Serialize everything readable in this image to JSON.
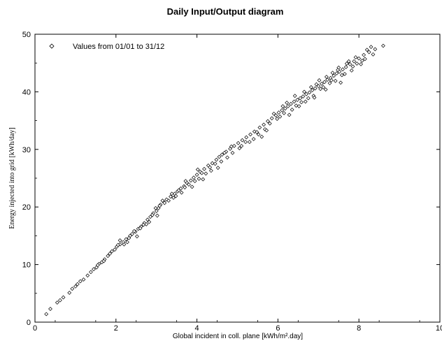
{
  "chart_data": {
    "type": "scatter",
    "title": "Daily Input/Output diagram",
    "xlabel": "Global incident in coll. plane [kWh/m².day]",
    "ylabel": "Energy injected into grid [kWh/day]",
    "xlim": [
      0,
      10
    ],
    "ylim": [
      0,
      50
    ],
    "x_ticks": [
      "0",
      "2",
      "4",
      "6",
      "8",
      "10"
    ],
    "y_ticks": [
      "0",
      "10",
      "20",
      "30",
      "40",
      "50"
    ],
    "grid": false,
    "legend_position": "top-left",
    "series": [
      {
        "name": "Values from 01/01 to 31/12",
        "marker": "open-diamond",
        "color": "#000000",
        "points": [
          [
            0.28,
            1.4
          ],
          [
            0.38,
            2.3
          ],
          [
            0.55,
            3.4
          ],
          [
            0.62,
            3.8
          ],
          [
            0.7,
            4.3
          ],
          [
            0.85,
            5.1
          ],
          [
            0.92,
            5.8
          ],
          [
            1.0,
            6.2
          ],
          [
            1.05,
            6.6
          ],
          [
            1.12,
            7.1
          ],
          [
            1.2,
            7.4
          ],
          [
            1.3,
            8.1
          ],
          [
            1.38,
            8.7
          ],
          [
            1.45,
            9.2
          ],
          [
            1.52,
            9.5
          ],
          [
            1.58,
            10.1
          ],
          [
            1.65,
            10.4
          ],
          [
            1.72,
            10.9
          ],
          [
            1.8,
            11.5
          ],
          [
            1.85,
            11.9
          ],
          [
            1.9,
            12.3
          ],
          [
            1.97,
            12.6
          ],
          [
            2.02,
            13.1
          ],
          [
            2.1,
            13.5
          ],
          [
            2.18,
            13.9
          ],
          [
            2.25,
            14.4
          ],
          [
            2.32,
            14.6
          ],
          [
            2.4,
            15.3
          ],
          [
            2.48,
            15.7
          ],
          [
            2.55,
            16.2
          ],
          [
            2.62,
            16.6
          ],
          [
            2.7,
            17.2
          ],
          [
            2.78,
            17.8
          ],
          [
            2.85,
            18.3
          ],
          [
            2.92,
            18.9
          ],
          [
            3.0,
            19.3
          ],
          [
            3.05,
            19.8
          ],
          [
            3.1,
            20.4
          ],
          [
            3.18,
            20.9
          ],
          [
            3.25,
            21.3
          ],
          [
            3.35,
            21.8
          ],
          [
            3.45,
            22.3
          ],
          [
            3.52,
            22.7
          ],
          [
            3.6,
            23.2
          ],
          [
            3.68,
            23.6
          ],
          [
            3.75,
            24.2
          ],
          [
            3.85,
            24.6
          ],
          [
            3.92,
            25.1
          ],
          [
            4.0,
            25.6
          ],
          [
            4.08,
            26.1
          ],
          [
            4.18,
            26.6
          ],
          [
            4.28,
            27.2
          ],
          [
            4.38,
            27.6
          ],
          [
            4.48,
            28.2
          ],
          [
            4.55,
            28.7
          ],
          [
            4.62,
            29.1
          ],
          [
            4.72,
            29.6
          ],
          [
            4.82,
            30.1
          ],
          [
            4.92,
            30.6
          ],
          [
            5.02,
            31.1
          ],
          [
            5.12,
            31.6
          ],
          [
            5.22,
            32.1
          ],
          [
            5.32,
            32.6
          ],
          [
            5.42,
            33.1
          ],
          [
            5.55,
            33.8
          ],
          [
            5.65,
            34.3
          ],
          [
            5.75,
            34.9
          ],
          [
            5.85,
            35.4
          ],
          [
            5.95,
            35.9
          ],
          [
            6.02,
            36.4
          ],
          [
            6.1,
            36.8
          ],
          [
            6.18,
            37.1
          ],
          [
            6.25,
            37.5
          ],
          [
            6.32,
            37.9
          ],
          [
            6.4,
            38.3
          ],
          [
            6.48,
            38.6
          ],
          [
            6.55,
            38.9
          ],
          [
            6.62,
            39.2
          ],
          [
            6.7,
            39.6
          ],
          [
            6.78,
            39.9
          ],
          [
            6.85,
            40.3
          ],
          [
            6.92,
            40.6
          ],
          [
            7.0,
            41.0
          ],
          [
            7.08,
            41.4
          ],
          [
            7.15,
            41.7
          ],
          [
            7.22,
            42.1
          ],
          [
            7.3,
            42.4
          ],
          [
            7.38,
            42.8
          ],
          [
            7.45,
            43.2
          ],
          [
            7.52,
            43.5
          ],
          [
            7.6,
            43.9
          ],
          [
            7.68,
            44.3
          ],
          [
            7.78,
            44.8
          ],
          [
            7.88,
            45.3
          ],
          [
            8.0,
            45.8
          ],
          [
            8.12,
            46.4
          ],
          [
            8.25,
            46.9
          ],
          [
            8.4,
            47.4
          ],
          [
            8.6,
            48.0
          ],
          [
            1.55,
            9.9
          ],
          [
            1.7,
            10.6
          ],
          [
            2.05,
            13.4
          ],
          [
            2.2,
            13.5
          ],
          [
            2.35,
            15.0
          ],
          [
            2.45,
            15.8
          ],
          [
            2.6,
            16.3
          ],
          [
            2.75,
            17.0
          ],
          [
            2.9,
            18.6
          ],
          [
            2.98,
            19.8
          ],
          [
            3.08,
            20.2
          ],
          [
            3.15,
            21.1
          ],
          [
            3.3,
            21.1
          ],
          [
            3.42,
            21.6
          ],
          [
            3.55,
            22.9
          ],
          [
            3.7,
            23.4
          ],
          [
            3.8,
            23.9
          ],
          [
            3.95,
            24.5
          ],
          [
            4.05,
            24.9
          ],
          [
            4.12,
            25.9
          ],
          [
            4.22,
            25.8
          ],
          [
            4.35,
            26.3
          ],
          [
            4.45,
            27.5
          ],
          [
            4.6,
            27.9
          ],
          [
            4.75,
            28.6
          ],
          [
            4.88,
            29.4
          ],
          [
            5.05,
            30.2
          ],
          [
            5.2,
            31.3
          ],
          [
            5.4,
            31.8
          ],
          [
            5.52,
            32.6
          ],
          [
            5.68,
            33.5
          ],
          [
            5.8,
            34.5
          ],
          [
            5.9,
            36.2
          ],
          [
            6.05,
            35.7
          ],
          [
            6.15,
            36.3
          ],
          [
            6.22,
            38.1
          ],
          [
            6.35,
            36.9
          ],
          [
            6.45,
            37.6
          ],
          [
            6.58,
            38.2
          ],
          [
            6.65,
            40.0
          ],
          [
            6.75,
            38.9
          ],
          [
            6.88,
            39.3
          ],
          [
            6.95,
            41.3
          ],
          [
            7.05,
            40.5
          ],
          [
            7.12,
            40.8
          ],
          [
            7.2,
            42.6
          ],
          [
            7.28,
            41.5
          ],
          [
            7.35,
            43.3
          ],
          [
            7.42,
            41.9
          ],
          [
            7.5,
            44.2
          ],
          [
            7.58,
            42.9
          ],
          [
            7.65,
            43.1
          ],
          [
            7.75,
            45.3
          ],
          [
            7.85,
            44.4
          ],
          [
            7.95,
            44.9
          ],
          [
            8.08,
            45.4
          ],
          [
            8.2,
            47.3
          ],
          [
            8.35,
            46.5
          ],
          [
            2.1,
            14.2
          ],
          [
            2.28,
            13.9
          ],
          [
            2.52,
            14.9
          ],
          [
            2.68,
            16.9
          ],
          [
            2.82,
            17.4
          ],
          [
            3.02,
            18.5
          ],
          [
            3.2,
            20.7
          ],
          [
            3.38,
            22.3
          ],
          [
            3.48,
            21.9
          ],
          [
            3.62,
            22.5
          ],
          [
            3.72,
            24.5
          ],
          [
            3.88,
            23.5
          ],
          [
            4.02,
            26.5
          ],
          [
            4.15,
            24.8
          ],
          [
            4.32,
            26.9
          ],
          [
            4.52,
            26.8
          ],
          [
            4.68,
            29.4
          ],
          [
            4.85,
            30.5
          ],
          [
            5.1,
            30.6
          ],
          [
            5.3,
            31.3
          ],
          [
            5.48,
            33.0
          ],
          [
            5.6,
            32.2
          ],
          [
            5.72,
            33.3
          ],
          [
            5.98,
            35.3
          ],
          [
            6.12,
            37.5
          ],
          [
            6.28,
            36.0
          ],
          [
            6.42,
            39.3
          ],
          [
            6.52,
            37.5
          ],
          [
            6.68,
            38.3
          ],
          [
            6.82,
            40.8
          ],
          [
            6.9,
            39.0
          ],
          [
            7.02,
            42.0
          ],
          [
            7.18,
            40.4
          ],
          [
            7.32,
            42.0
          ],
          [
            7.48,
            43.8
          ],
          [
            7.55,
            41.6
          ],
          [
            7.7,
            44.9
          ],
          [
            7.82,
            43.7
          ],
          [
            7.92,
            46.0
          ],
          [
            8.05,
            44.8
          ],
          [
            8.15,
            45.7
          ],
          [
            8.3,
            47.8
          ]
        ]
      }
    ]
  }
}
